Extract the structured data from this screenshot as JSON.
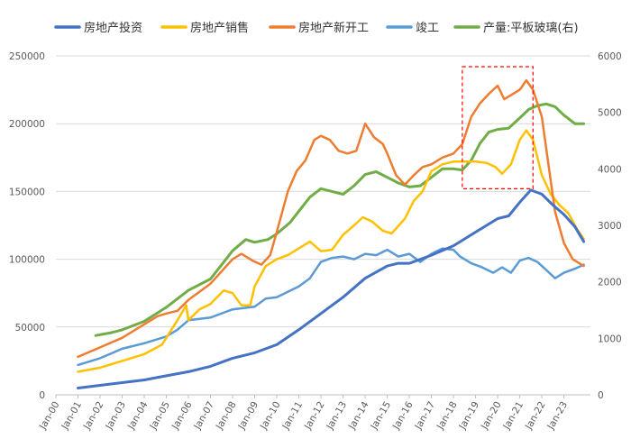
{
  "chart_data": {
    "type": "line",
    "title": "",
    "xlabel": "",
    "ylabel": "",
    "x_ticks": [
      "Jan-00",
      "Jan-01",
      "Jan-02",
      "Jan-03",
      "Jan-04",
      "Jan-05",
      "Jan-06",
      "Jan-07",
      "Jan-08",
      "Jan-09",
      "Jan-10",
      "Jan-11",
      "Jan-12",
      "Jan-13",
      "Jan-14",
      "Jan-15",
      "Jan-16",
      "Jan-17",
      "Jan-18",
      "Jan-19",
      "Jan-20",
      "Jan-21",
      "Jan-22",
      "Jan-23"
    ],
    "x_range": [
      2000.0,
      2024.2
    ],
    "y_left": {
      "ticks": [
        "0",
        "50000",
        "100000",
        "150000",
        "200000",
        "250000"
      ],
      "ylim": [
        0,
        250000
      ]
    },
    "y_right": {
      "ticks": [
        "0",
        "1000",
        "2000",
        "3000",
        "4000",
        "5000",
        "6000"
      ],
      "ylim": [
        0,
        6000
      ]
    },
    "grid": true,
    "legend": {
      "position": "top"
    },
    "series": [
      {
        "name": "房地产投资",
        "axis": "left",
        "color": "#4472c4",
        "width": 3,
        "points": [
          [
            2001.0,
            5000
          ],
          [
            2002.0,
            7000
          ],
          [
            2003.0,
            9000
          ],
          [
            2004.0,
            11000
          ],
          [
            2005.0,
            14000
          ],
          [
            2006.0,
            17000
          ],
          [
            2007.0,
            21000
          ],
          [
            2008.0,
            27000
          ],
          [
            2009.0,
            31000
          ],
          [
            2010.0,
            37000
          ],
          [
            2011.0,
            48000
          ],
          [
            2012.0,
            60000
          ],
          [
            2013.0,
            72000
          ],
          [
            2014.0,
            86000
          ],
          [
            2015.0,
            95000
          ],
          [
            2015.5,
            97000
          ],
          [
            2016.0,
            97000
          ],
          [
            2017.0,
            103000
          ],
          [
            2018.0,
            110000
          ],
          [
            2019.0,
            120000
          ],
          [
            2020.0,
            130000
          ],
          [
            2020.5,
            132000
          ],
          [
            2021.0,
            142000
          ],
          [
            2021.5,
            151000
          ],
          [
            2022.0,
            148000
          ],
          [
            2022.5,
            140000
          ],
          [
            2023.0,
            133000
          ],
          [
            2023.5,
            124000
          ],
          [
            2023.9,
            113000
          ]
        ]
      },
      {
        "name": "房地产销售",
        "axis": "left",
        "color": "#ffc000",
        "width": 2.5,
        "points": [
          [
            2001.0,
            17000
          ],
          [
            2002.0,
            20000
          ],
          [
            2003.0,
            25000
          ],
          [
            2004.0,
            30000
          ],
          [
            2004.8,
            37000
          ],
          [
            2005.0,
            42000
          ],
          [
            2005.5,
            55000
          ],
          [
            2005.9,
            66000
          ],
          [
            2006.0,
            55000
          ],
          [
            2006.5,
            63000
          ],
          [
            2007.0,
            67000
          ],
          [
            2007.6,
            77000
          ],
          [
            2008.0,
            75000
          ],
          [
            2008.4,
            66000
          ],
          [
            2008.8,
            66000
          ],
          [
            2009.0,
            80000
          ],
          [
            2009.5,
            95000
          ],
          [
            2010.0,
            100000
          ],
          [
            2010.5,
            103000
          ],
          [
            2011.0,
            108000
          ],
          [
            2011.5,
            113000
          ],
          [
            2012.0,
            106000
          ],
          [
            2012.5,
            107000
          ],
          [
            2013.0,
            118000
          ],
          [
            2013.5,
            125000
          ],
          [
            2013.9,
            131000
          ],
          [
            2014.3,
            128000
          ],
          [
            2014.8,
            121000
          ],
          [
            2015.2,
            119000
          ],
          [
            2015.8,
            130000
          ],
          [
            2016.2,
            143000
          ],
          [
            2016.6,
            150000
          ],
          [
            2017.0,
            165000
          ],
          [
            2017.5,
            170000
          ],
          [
            2018.0,
            172000
          ],
          [
            2018.5,
            172000
          ],
          [
            2019.0,
            172000
          ],
          [
            2019.5,
            171000
          ],
          [
            2019.9,
            168000
          ],
          [
            2020.2,
            163000
          ],
          [
            2020.6,
            170000
          ],
          [
            2021.0,
            188000
          ],
          [
            2021.3,
            195000
          ],
          [
            2021.6,
            188000
          ],
          [
            2022.0,
            162000
          ],
          [
            2022.4,
            148000
          ],
          [
            2022.8,
            140000
          ],
          [
            2023.2,
            134000
          ],
          [
            2023.6,
            122000
          ],
          [
            2023.9,
            115000
          ]
        ]
      },
      {
        "name": "房地产新开工",
        "axis": "left",
        "color": "#ed7d31",
        "width": 2.5,
        "points": [
          [
            2001.0,
            28000
          ],
          [
            2002.0,
            35000
          ],
          [
            2003.0,
            42000
          ],
          [
            2004.0,
            52000
          ],
          [
            2004.6,
            58000
          ],
          [
            2005.0,
            60000
          ],
          [
            2005.5,
            62000
          ],
          [
            2006.0,
            70000
          ],
          [
            2007.0,
            82000
          ],
          [
            2008.0,
            100000
          ],
          [
            2008.4,
            104000
          ],
          [
            2008.9,
            99000
          ],
          [
            2009.3,
            96000
          ],
          [
            2009.7,
            103000
          ],
          [
            2010.0,
            120000
          ],
          [
            2010.5,
            150000
          ],
          [
            2010.9,
            165000
          ],
          [
            2011.3,
            173000
          ],
          [
            2011.7,
            188000
          ],
          [
            2012.0,
            191000
          ],
          [
            2012.4,
            188000
          ],
          [
            2012.8,
            180000
          ],
          [
            2013.2,
            178000
          ],
          [
            2013.6,
            180000
          ],
          [
            2014.0,
            200000
          ],
          [
            2014.4,
            190000
          ],
          [
            2014.8,
            185000
          ],
          [
            2015.0,
            178000
          ],
          [
            2015.4,
            162000
          ],
          [
            2015.8,
            155000
          ],
          [
            2016.2,
            162000
          ],
          [
            2016.6,
            168000
          ],
          [
            2017.0,
            170000
          ],
          [
            2017.5,
            175000
          ],
          [
            2018.0,
            178000
          ],
          [
            2018.4,
            185000
          ],
          [
            2018.8,
            205000
          ],
          [
            2019.2,
            215000
          ],
          [
            2019.6,
            222000
          ],
          [
            2020.0,
            228000
          ],
          [
            2020.3,
            218000
          ],
          [
            2020.7,
            222000
          ],
          [
            2021.0,
            225000
          ],
          [
            2021.3,
            232000
          ],
          [
            2021.6,
            225000
          ],
          [
            2022.0,
            205000
          ],
          [
            2022.3,
            170000
          ],
          [
            2022.6,
            135000
          ],
          [
            2023.0,
            112000
          ],
          [
            2023.4,
            100000
          ],
          [
            2023.9,
            95000
          ]
        ]
      },
      {
        "name": "竣工",
        "axis": "left",
        "color": "#5b9bd5",
        "width": 2.5,
        "points": [
          [
            2001.0,
            22000
          ],
          [
            2002.0,
            27000
          ],
          [
            2003.0,
            34000
          ],
          [
            2004.0,
            38000
          ],
          [
            2005.0,
            43000
          ],
          [
            2005.5,
            48000
          ],
          [
            2006.0,
            55000
          ],
          [
            2007.0,
            57000
          ],
          [
            2008.0,
            63000
          ],
          [
            2009.0,
            65000
          ],
          [
            2009.5,
            71000
          ],
          [
            2010.0,
            72000
          ],
          [
            2011.0,
            80000
          ],
          [
            2011.5,
            86000
          ],
          [
            2012.0,
            98000
          ],
          [
            2012.5,
            101000
          ],
          [
            2013.0,
            102000
          ],
          [
            2013.5,
            100000
          ],
          [
            2014.0,
            104000
          ],
          [
            2014.5,
            103000
          ],
          [
            2015.0,
            107000
          ],
          [
            2015.5,
            102000
          ],
          [
            2016.0,
            104000
          ],
          [
            2016.5,
            98000
          ],
          [
            2017.0,
            104000
          ],
          [
            2017.5,
            108000
          ],
          [
            2018.0,
            107000
          ],
          [
            2018.3,
            102000
          ],
          [
            2018.8,
            97000
          ],
          [
            2019.3,
            94000
          ],
          [
            2019.8,
            90000
          ],
          [
            2020.2,
            94000
          ],
          [
            2020.6,
            90000
          ],
          [
            2021.0,
            99000
          ],
          [
            2021.4,
            101000
          ],
          [
            2021.8,
            98000
          ],
          [
            2022.2,
            92000
          ],
          [
            2022.6,
            86000
          ],
          [
            2023.0,
            90000
          ],
          [
            2023.5,
            93000
          ],
          [
            2023.9,
            96000
          ]
        ]
      },
      {
        "name": "产量:平板玻璃(右)",
        "axis": "right",
        "color": "#70ad47",
        "width": 3,
        "points": [
          [
            2001.8,
            1050
          ],
          [
            2002.5,
            1100
          ],
          [
            2003.0,
            1150
          ],
          [
            2004.0,
            1300
          ],
          [
            2005.0,
            1550
          ],
          [
            2006.0,
            1850
          ],
          [
            2007.0,
            2050
          ],
          [
            2008.0,
            2550
          ],
          [
            2008.6,
            2750
          ],
          [
            2009.0,
            2700
          ],
          [
            2009.6,
            2750
          ],
          [
            2010.0,
            2850
          ],
          [
            2010.6,
            3050
          ],
          [
            2011.0,
            3250
          ],
          [
            2011.5,
            3500
          ],
          [
            2012.0,
            3650
          ],
          [
            2012.5,
            3600
          ],
          [
            2013.0,
            3550
          ],
          [
            2013.5,
            3700
          ],
          [
            2014.0,
            3900
          ],
          [
            2014.5,
            3950
          ],
          [
            2015.0,
            3850
          ],
          [
            2015.5,
            3750
          ],
          [
            2016.0,
            3680
          ],
          [
            2016.5,
            3700
          ],
          [
            2017.0,
            3850
          ],
          [
            2017.5,
            4000
          ],
          [
            2018.0,
            4000
          ],
          [
            2018.4,
            3980
          ],
          [
            2018.8,
            4150
          ],
          [
            2019.2,
            4450
          ],
          [
            2019.6,
            4650
          ],
          [
            2020.0,
            4700
          ],
          [
            2020.5,
            4720
          ],
          [
            2021.0,
            4900
          ],
          [
            2021.4,
            5050
          ],
          [
            2021.8,
            5120
          ],
          [
            2022.2,
            5150
          ],
          [
            2022.6,
            5100
          ],
          [
            2023.0,
            4950
          ],
          [
            2023.5,
            4800
          ],
          [
            2023.9,
            4800
          ]
        ]
      }
    ],
    "annotations": [
      {
        "type": "dashed-rectangle",
        "color": "#ff0000",
        "x_range": [
          2018.4,
          2021.6
        ],
        "y_range": [
          152000,
          242000
        ]
      }
    ]
  }
}
